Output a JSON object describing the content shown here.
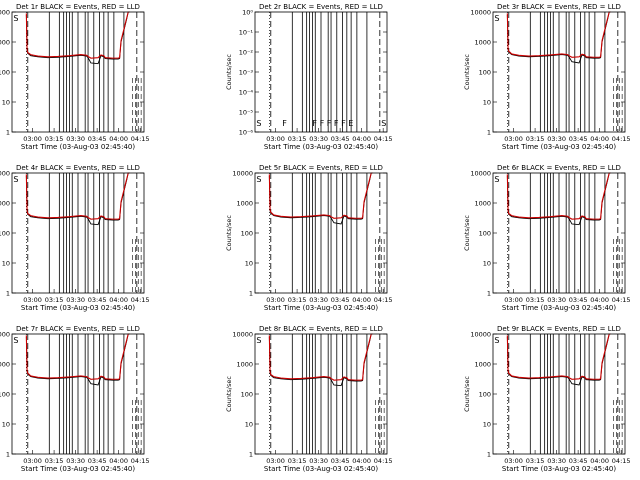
{
  "figure": {
    "x_tick_labels": [
      "03:00",
      "03:15",
      "03:30",
      "03:45",
      "04:00",
      "04:15"
    ],
    "xlabel": "Start Time (03-Aug-03 02:45:40)",
    "ylabel": "Counts/sec",
    "y_tick_labels": [
      "1",
      "10",
      "100",
      "1000",
      "10000"
    ],
    "y_tick_labels_exp": [
      "10⁻⁶",
      "10⁻⁵",
      "10⁻⁴",
      "10⁻³",
      "10⁻²",
      "10⁻¹",
      "10⁰"
    ],
    "colors": {
      "events": "#000000",
      "lld": "#cc0000"
    }
  },
  "chart_data": [
    {
      "type": "line",
      "title": "Det 1r BLACK = Events, RED = LLD",
      "xlim_minutes_from_start": [
        0,
        92
      ],
      "ylim": [
        1,
        10000
      ],
      "yscale": "log",
      "series": [
        {
          "name": "Events",
          "x": [
            10,
            10.5,
            11,
            11.5,
            13,
            18,
            25,
            32,
            40,
            48,
            50,
            52,
            53,
            55,
            60,
            62,
            64,
            65,
            70,
            72,
            74,
            75,
            76,
            80,
            81,
            82
          ],
          "values": [
            8000,
            500,
            420,
            400,
            350,
            320,
            300,
            310,
            330,
            360,
            350,
            340,
            300,
            200,
            190,
            350,
            320,
            280,
            270,
            270,
            270,
            280,
            1000,
            6000,
            10000,
            10000
          ]
        },
        {
          "name": "LLD",
          "x": [
            10,
            10.5,
            11,
            11.5,
            13,
            18,
            25,
            32,
            40,
            48,
            50,
            52,
            53,
            55,
            60,
            62,
            64,
            65,
            70,
            72,
            74,
            75,
            76,
            80,
            81,
            82
          ],
          "values": [
            9000,
            550,
            440,
            430,
            380,
            340,
            320,
            330,
            350,
            380,
            370,
            360,
            330,
            290,
            300,
            370,
            350,
            300,
            290,
            290,
            290,
            300,
            1100,
            6500,
            10000,
            10000
          ]
        }
      ],
      "flags": [
        "S"
      ]
    },
    {
      "type": "line",
      "title": "Det 2r BLACK = Events, RED = LLD",
      "xlim_minutes_from_start": [
        0,
        92
      ],
      "ylim": [
        1e-06,
        1
      ],
      "yscale": "log",
      "series": [],
      "flags": [
        "S",
        "F",
        "F",
        "F",
        "F",
        "F",
        "F",
        "E",
        "S"
      ]
    },
    {
      "type": "line",
      "title": "Det 3r BLACK = Events, RED = LLD",
      "xlim_minutes_from_start": [
        0,
        92
      ],
      "ylim": [
        1,
        10000
      ],
      "yscale": "log",
      "series": [
        {
          "name": "Events",
          "x": [
            10,
            10.5,
            11,
            11.5,
            13,
            18,
            25,
            32,
            40,
            48,
            50,
            52,
            53,
            55,
            60,
            62,
            64,
            65,
            70,
            72,
            74,
            75,
            76,
            80,
            81,
            82
          ],
          "values": [
            8000,
            550,
            470,
            440,
            380,
            340,
            320,
            330,
            350,
            380,
            370,
            360,
            320,
            220,
            200,
            370,
            340,
            300,
            290,
            290,
            290,
            300,
            1000,
            6000,
            10000,
            10000
          ]
        },
        {
          "name": "LLD",
          "x": [
            10,
            10.5,
            11,
            11.5,
            13,
            18,
            25,
            32,
            40,
            48,
            50,
            52,
            53,
            55,
            60,
            62,
            64,
            65,
            70,
            72,
            74,
            75,
            76,
            80,
            81,
            82
          ],
          "values": [
            9000,
            600,
            490,
            470,
            400,
            360,
            340,
            350,
            370,
            400,
            390,
            380,
            350,
            310,
            320,
            390,
            370,
            320,
            310,
            310,
            310,
            320,
            1100,
            6500,
            10000,
            10000
          ]
        }
      ],
      "flags": [
        "S"
      ]
    },
    {
      "type": "line",
      "title": "Det 4r BLACK = Events, RED = LLD",
      "xlim_minutes_from_start": [
        0,
        92
      ],
      "ylim": [
        1,
        10000
      ],
      "yscale": "log",
      "series": [
        {
          "name": "Events",
          "x": [
            10,
            10.5,
            11,
            11.5,
            13,
            18,
            25,
            32,
            40,
            48,
            50,
            52,
            53,
            55,
            60,
            62,
            64,
            65,
            70,
            72,
            74,
            75,
            76,
            80,
            81,
            82
          ],
          "values": [
            8000,
            500,
            420,
            400,
            350,
            320,
            300,
            310,
            330,
            360,
            350,
            340,
            300,
            200,
            190,
            350,
            320,
            280,
            270,
            270,
            270,
            280,
            1000,
            6000,
            10000,
            10000
          ]
        },
        {
          "name": "LLD",
          "x": [
            10,
            10.5,
            11,
            11.5,
            13,
            18,
            25,
            32,
            40,
            48,
            50,
            52,
            53,
            55,
            60,
            62,
            64,
            65,
            70,
            72,
            74,
            75,
            76,
            80,
            81,
            82
          ],
          "values": [
            9000,
            550,
            440,
            430,
            380,
            340,
            320,
            330,
            350,
            380,
            370,
            360,
            330,
            290,
            300,
            370,
            350,
            300,
            290,
            290,
            290,
            300,
            1100,
            6500,
            10000,
            10000
          ]
        }
      ],
      "flags": [
        "S"
      ]
    },
    {
      "type": "line",
      "title": "Det 5r BLACK = Events, RED = LLD",
      "xlim_minutes_from_start": [
        0,
        92
      ],
      "ylim": [
        1,
        10000
      ],
      "yscale": "log",
      "series": [
        {
          "name": "Events",
          "x": [
            10,
            10.5,
            11,
            11.5,
            13,
            18,
            25,
            32,
            40,
            48,
            50,
            52,
            53,
            55,
            60,
            62,
            64,
            65,
            70,
            72,
            74,
            75,
            76,
            80,
            81,
            82
          ],
          "values": [
            8000,
            550,
            470,
            440,
            380,
            340,
            320,
            330,
            350,
            380,
            370,
            360,
            320,
            220,
            200,
            370,
            340,
            300,
            290,
            290,
            290,
            300,
            1000,
            6000,
            10000,
            10000
          ]
        },
        {
          "name": "LLD",
          "x": [
            10,
            10.5,
            11,
            11.5,
            13,
            18,
            25,
            32,
            40,
            48,
            50,
            52,
            53,
            55,
            60,
            62,
            64,
            65,
            70,
            72,
            74,
            75,
            76,
            80,
            81,
            82
          ],
          "values": [
            9000,
            600,
            490,
            470,
            400,
            360,
            340,
            350,
            370,
            400,
            390,
            380,
            350,
            310,
            320,
            390,
            370,
            320,
            310,
            310,
            310,
            320,
            1100,
            6500,
            10000,
            10000
          ]
        }
      ],
      "flags": [
        "S"
      ]
    },
    {
      "type": "line",
      "title": "Det 6r BLACK = Events, RED = LLD",
      "xlim_minutes_from_start": [
        0,
        92
      ],
      "ylim": [
        1,
        10000
      ],
      "yscale": "log",
      "series": [
        {
          "name": "Events",
          "x": [
            10,
            10.5,
            11,
            11.5,
            13,
            18,
            25,
            32,
            40,
            48,
            50,
            52,
            53,
            55,
            60,
            62,
            64,
            65,
            70,
            72,
            74,
            75,
            76,
            80,
            81,
            82
          ],
          "values": [
            8000,
            500,
            420,
            400,
            350,
            320,
            300,
            310,
            330,
            360,
            350,
            340,
            300,
            200,
            190,
            350,
            320,
            280,
            270,
            270,
            270,
            280,
            1000,
            6000,
            10000,
            10000
          ]
        },
        {
          "name": "LLD",
          "x": [
            10,
            10.5,
            11,
            11.5,
            13,
            18,
            25,
            32,
            40,
            48,
            50,
            52,
            53,
            55,
            60,
            62,
            64,
            65,
            70,
            72,
            74,
            75,
            76,
            80,
            81,
            82
          ],
          "values": [
            9000,
            550,
            440,
            430,
            380,
            340,
            320,
            330,
            350,
            380,
            370,
            360,
            330,
            290,
            300,
            370,
            350,
            300,
            290,
            290,
            290,
            300,
            1100,
            6500,
            10000,
            10000
          ]
        }
      ],
      "flags": [
        "S"
      ]
    },
    {
      "type": "line",
      "title": "Det 7r BLACK = Events, RED = LLD",
      "xlim_minutes_from_start": [
        0,
        92
      ],
      "ylim": [
        1,
        10000
      ],
      "yscale": "log",
      "series": [
        {
          "name": "Events",
          "x": [
            10,
            10.5,
            11,
            11.5,
            13,
            18,
            25,
            32,
            40,
            48,
            50,
            52,
            53,
            55,
            60,
            62,
            64,
            65,
            70,
            72,
            74,
            75,
            76,
            80,
            81,
            82
          ],
          "values": [
            8000,
            550,
            470,
            440,
            380,
            340,
            320,
            330,
            350,
            380,
            370,
            360,
            320,
            220,
            200,
            370,
            340,
            300,
            290,
            290,
            290,
            300,
            1000,
            6000,
            10000,
            10000
          ]
        },
        {
          "name": "LLD",
          "x": [
            10,
            10.5,
            11,
            11.5,
            13,
            18,
            25,
            32,
            40,
            48,
            50,
            52,
            53,
            55,
            60,
            62,
            64,
            65,
            70,
            72,
            74,
            75,
            76,
            80,
            81,
            82
          ],
          "values": [
            9000,
            600,
            490,
            470,
            400,
            360,
            340,
            350,
            370,
            400,
            390,
            380,
            350,
            310,
            320,
            390,
            370,
            320,
            310,
            310,
            310,
            320,
            1100,
            6500,
            10000,
            10000
          ]
        }
      ],
      "flags": [
        "S"
      ]
    },
    {
      "type": "line",
      "title": "Det 8r BLACK = Events, RED = LLD",
      "xlim_minutes_from_start": [
        0,
        92
      ],
      "ylim": [
        1,
        10000
      ],
      "yscale": "log",
      "series": [
        {
          "name": "Events",
          "x": [
            10,
            10.5,
            11,
            11.5,
            13,
            18,
            25,
            32,
            40,
            48,
            50,
            52,
            53,
            55,
            60,
            62,
            64,
            65,
            70,
            72,
            74,
            75,
            76,
            80,
            81,
            82
          ],
          "values": [
            8000,
            500,
            420,
            400,
            350,
            320,
            300,
            310,
            330,
            360,
            350,
            340,
            300,
            200,
            190,
            350,
            320,
            280,
            270,
            270,
            270,
            280,
            1000,
            6000,
            10000,
            10000
          ]
        },
        {
          "name": "LLD",
          "x": [
            10,
            10.5,
            11,
            11.5,
            13,
            18,
            25,
            32,
            40,
            48,
            50,
            52,
            53,
            55,
            60,
            62,
            64,
            65,
            70,
            72,
            74,
            75,
            76,
            80,
            81,
            82
          ],
          "values": [
            9000,
            550,
            440,
            430,
            380,
            340,
            320,
            330,
            350,
            380,
            370,
            360,
            330,
            290,
            300,
            370,
            350,
            300,
            290,
            290,
            290,
            300,
            1100,
            6500,
            10000,
            10000
          ]
        }
      ],
      "flags": [
        "S"
      ]
    },
    {
      "type": "line",
      "title": "Det 9r BLACK = Events, RED = LLD",
      "xlim_minutes_from_start": [
        0,
        92
      ],
      "ylim": [
        1,
        10000
      ],
      "yscale": "log",
      "series": [
        {
          "name": "Events",
          "x": [
            10,
            10.5,
            11,
            11.5,
            13,
            18,
            25,
            32,
            40,
            48,
            50,
            52,
            53,
            55,
            60,
            62,
            64,
            65,
            70,
            72,
            74,
            75,
            76,
            80,
            81,
            82
          ],
          "values": [
            8000,
            550,
            470,
            440,
            380,
            340,
            320,
            330,
            350,
            380,
            370,
            360,
            320,
            220,
            200,
            370,
            340,
            300,
            290,
            290,
            290,
            300,
            1000,
            6000,
            10000,
            10000
          ]
        },
        {
          "name": "LLD",
          "x": [
            10,
            10.5,
            11,
            11.5,
            13,
            18,
            25,
            32,
            40,
            48,
            50,
            52,
            53,
            55,
            60,
            62,
            64,
            65,
            70,
            72,
            74,
            75,
            76,
            80,
            81,
            82
          ],
          "values": [
            9000,
            600,
            490,
            470,
            400,
            360,
            340,
            350,
            370,
            400,
            390,
            380,
            350,
            310,
            320,
            390,
            370,
            320,
            310,
            310,
            310,
            320,
            1100,
            6500,
            10000,
            10000
          ]
        }
      ],
      "flags": [
        "S"
      ]
    }
  ]
}
